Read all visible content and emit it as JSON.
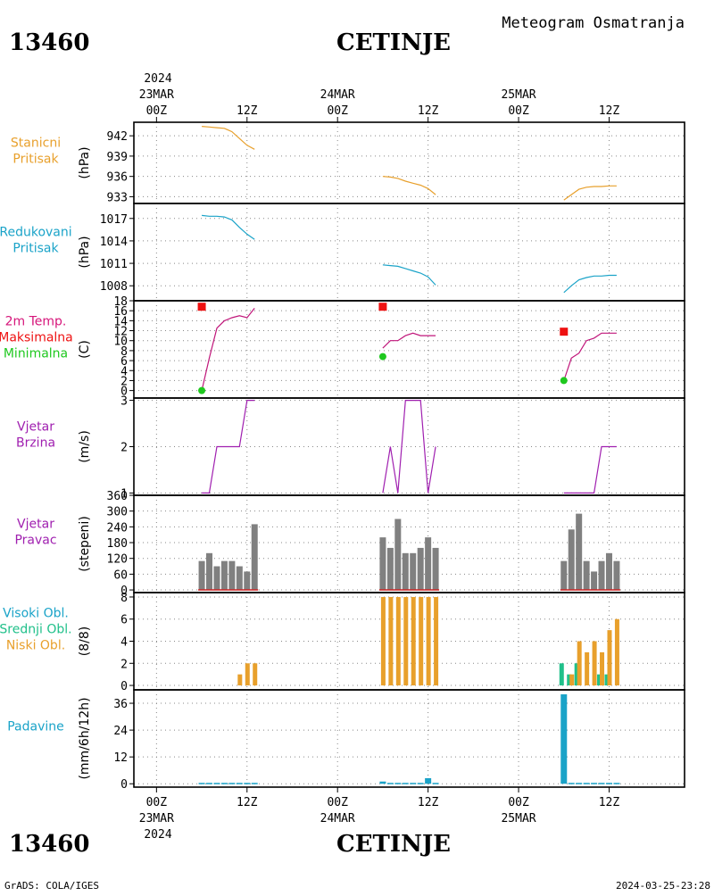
{
  "header": {
    "station_id": "13460",
    "station_name": "CETINJE",
    "product": "Meteogram Osmatranja"
  },
  "footer": {
    "station_id": "13460",
    "station_name": "CETINJE",
    "credit": "GrADS: COLA/IGES",
    "timestamp": "2024-03-25-23:28"
  },
  "time_axis": {
    "top_year": "2024",
    "bottom_year": "2024",
    "dates": [
      "23MAR",
      "24MAR",
      "25MAR"
    ],
    "ticks": [
      {
        "h": 0,
        "label": "00Z"
      },
      {
        "h": 12,
        "label": "12Z"
      },
      {
        "h": 24,
        "label": "00Z"
      },
      {
        "h": 36,
        "label": "12Z"
      },
      {
        "h": 48,
        "label": "00Z"
      },
      {
        "h": 60,
        "label": "12Z"
      }
    ],
    "date_hours": [
      0,
      24,
      48
    ],
    "x_range_hours": [
      -3,
      70
    ]
  },
  "chart_data": [
    {
      "type": "line",
      "label_lines": [
        "Stanicni",
        "Pritisak"
      ],
      "label_color": "#e8a02c",
      "ylabel": "(hPa)",
      "ylim": [
        932.0,
        944.0
      ],
      "yticks": [
        933,
        936,
        939,
        942
      ],
      "series": [
        {
          "color": "#e8a02c",
          "segments": [
            [
              [
                6,
                943.4
              ],
              [
                7,
                943.3
              ],
              [
                8,
                943.2
              ],
              [
                9,
                943.1
              ],
              [
                10,
                942.6
              ],
              [
                11,
                941.6
              ],
              [
                12,
                940.6
              ],
              [
                13,
                940.0
              ]
            ],
            [
              [
                30,
                936.0
              ],
              [
                31,
                935.9
              ],
              [
                32,
                935.7
              ],
              [
                33,
                935.3
              ],
              [
                34,
                935.0
              ],
              [
                35,
                934.7
              ],
              [
                36,
                934.2
              ],
              [
                37,
                933.3
              ]
            ],
            [
              [
                54,
                932.5
              ],
              [
                55,
                933.3
              ],
              [
                56,
                934.1
              ],
              [
                57,
                934.4
              ],
              [
                58,
                934.5
              ],
              [
                59,
                934.5
              ],
              [
                60,
                934.6
              ],
              [
                61,
                934.6
              ]
            ]
          ]
        }
      ]
    },
    {
      "type": "line",
      "label_lines": [
        "Redukovani",
        "Pritisak"
      ],
      "label_color": "#1aa3c8",
      "ylabel": "(hPa)",
      "ylim": [
        1006.0,
        1019.0
      ],
      "yticks": [
        1008,
        1011,
        1014,
        1017
      ],
      "series": [
        {
          "color": "#1aa3c8",
          "segments": [
            [
              [
                6,
                1017.4
              ],
              [
                7,
                1017.3
              ],
              [
                8,
                1017.3
              ],
              [
                9,
                1017.2
              ],
              [
                10,
                1016.8
              ],
              [
                11,
                1015.8
              ],
              [
                12,
                1014.9
              ],
              [
                13,
                1014.2
              ]
            ],
            [
              [
                30,
                1010.8
              ],
              [
                31,
                1010.7
              ],
              [
                32,
                1010.6
              ],
              [
                33,
                1010.3
              ],
              [
                34,
                1010.0
              ],
              [
                35,
                1009.7
              ],
              [
                36,
                1009.2
              ],
              [
                37,
                1008.1
              ]
            ],
            [
              [
                54,
                1007.1
              ],
              [
                55,
                1008.0
              ],
              [
                56,
                1008.8
              ],
              [
                57,
                1009.1
              ],
              [
                58,
                1009.3
              ],
              [
                59,
                1009.3
              ],
              [
                60,
                1009.4
              ],
              [
                61,
                1009.4
              ]
            ]
          ]
        }
      ]
    },
    {
      "type": "line",
      "label_lines": [
        "2m Temp.",
        "Maksimalna",
        "Minimalna"
      ],
      "label_colors": [
        "#d6157a",
        "#ee1111",
        "#1ec81e"
      ],
      "ylabel": "(C)",
      "ylim": [
        -1.5,
        18.0
      ],
      "yticks": [
        0,
        2,
        4,
        6,
        8,
        10,
        12,
        14,
        16,
        18
      ],
      "series": [
        {
          "color": "#c0157a",
          "segments": [
            [
              [
                6,
                0.0
              ],
              [
                7,
                6.5
              ],
              [
                8,
                12.5
              ],
              [
                9,
                14.0
              ],
              [
                10,
                14.6
              ],
              [
                11,
                15.0
              ],
              [
                12,
                14.6
              ],
              [
                13,
                16.5
              ]
            ],
            [
              [
                30,
                8.5
              ],
              [
                31,
                10.0
              ],
              [
                32,
                10.0
              ],
              [
                33,
                11.0
              ],
              [
                34,
                11.5
              ],
              [
                35,
                11.0
              ],
              [
                36,
                11.0
              ],
              [
                37,
                11.0
              ]
            ],
            [
              [
                54,
                2.0
              ],
              [
                55,
                6.5
              ],
              [
                56,
                7.5
              ],
              [
                57,
                10.0
              ],
              [
                58,
                10.5
              ],
              [
                59,
                11.5
              ],
              [
                60,
                11.5
              ],
              [
                61,
                11.5
              ]
            ]
          ]
        }
      ],
      "markers": [
        {
          "h": 6,
          "value": 16.8,
          "color": "#ee1111",
          "shape": "square"
        },
        {
          "h": 30,
          "value": 16.8,
          "color": "#ee1111",
          "shape": "square"
        },
        {
          "h": 54,
          "value": 11.8,
          "color": "#ee1111",
          "shape": "square"
        },
        {
          "h": 6,
          "value": 0.0,
          "color": "#1ec81e",
          "shape": "dot"
        },
        {
          "h": 30,
          "value": 6.8,
          "color": "#1ec81e",
          "shape": "dot"
        },
        {
          "h": 54,
          "value": 2.0,
          "color": "#1ec81e",
          "shape": "dot"
        }
      ]
    },
    {
      "type": "line",
      "label_lines": [
        "Vjetar",
        "Brzina"
      ],
      "label_color": "#a020b0",
      "ylabel": "(m/s)",
      "ylim": [
        0.95,
        3.05
      ],
      "yticks": [
        1,
        2,
        3
      ],
      "series": [
        {
          "color": "#a020b0",
          "segments": [
            [
              [
                6,
                1
              ],
              [
                7,
                1
              ],
              [
                8,
                2
              ],
              [
                9,
                2
              ],
              [
                10,
                2
              ],
              [
                11,
                2
              ],
              [
                12,
                3
              ],
              [
                13,
                3
              ]
            ],
            [
              [
                30,
                1
              ],
              [
                31,
                2
              ],
              [
                32,
                1
              ],
              [
                33,
                3
              ],
              [
                34,
                3
              ],
              [
                35,
                3
              ],
              [
                36,
                1
              ],
              [
                37,
                2
              ]
            ],
            [
              [
                54,
                1
              ],
              [
                55,
                1
              ],
              [
                56,
                1
              ],
              [
                57,
                1
              ],
              [
                58,
                1
              ],
              [
                59,
                2
              ],
              [
                60,
                2
              ],
              [
                61,
                2
              ]
            ]
          ]
        }
      ]
    },
    {
      "type": "bar",
      "label_lines": [
        "Vjetar",
        "Pravac"
      ],
      "label_color": "#a020b0",
      "ylabel": "(stepeni)",
      "ylim": [
        -10,
        360
      ],
      "yticks": [
        0,
        60,
        120,
        180,
        240,
        300,
        360
      ],
      "bar_color": "#808080",
      "baseline_color": "#cc2222",
      "series": [
        {
          "name": "",
          "x": [
            6,
            7,
            8,
            9,
            10,
            11,
            12,
            13,
            30,
            31,
            32,
            33,
            34,
            35,
            36,
            37,
            54,
            55,
            56,
            57,
            58,
            59,
            60,
            61
          ],
          "values": [
            110,
            140,
            90,
            110,
            110,
            90,
            70,
            250,
            200,
            160,
            270,
            140,
            140,
            160,
            200,
            160,
            110,
            230,
            290,
            110,
            70,
            110,
            140,
            110
          ]
        }
      ]
    },
    {
      "type": "bar",
      "label_lines": [
        "Visoki Obl.",
        "Srednji Obl.",
        "Niski Obl."
      ],
      "label_colors": [
        "#1aa3c8",
        "#20c08a",
        "#e8a02c"
      ],
      "ylabel": "(8/8)",
      "ylim": [
        -0.4,
        8.4
      ],
      "yticks": [
        0,
        2,
        4,
        6,
        8
      ],
      "series": [
        {
          "name": "",
          "color": "#20c08a",
          "x": [
            54,
            55,
            56,
            59,
            60
          ],
          "values": [
            2,
            1,
            2,
            1,
            1
          ]
        },
        {
          "name": "",
          "color": "#e8a02c",
          "x": [
            11,
            12,
            13,
            30,
            31,
            32,
            33,
            34,
            35,
            36,
            37,
            55,
            56,
            57,
            58,
            59,
            60,
            61
          ],
          "values": [
            1,
            2,
            2,
            8,
            8,
            8,
            8,
            8,
            8,
            8,
            8,
            1,
            4,
            3,
            4,
            3,
            5,
            6
          ]
        }
      ]
    },
    {
      "type": "bar",
      "label_lines": [
        "Padavine"
      ],
      "label_color": "#1aa3c8",
      "ylabel": "(mm/6h/12h)",
      "ylim": [
        -1.5,
        42.0
      ],
      "yticks": [
        0,
        12,
        24,
        36
      ],
      "series": [
        {
          "name": "",
          "color": "#1aa3c8",
          "x": [
            6,
            7,
            8,
            9,
            10,
            11,
            12,
            13,
            30,
            31,
            32,
            33,
            34,
            35,
            36,
            37,
            54,
            55,
            56,
            57,
            58,
            59,
            60,
            61
          ],
          "values": [
            0.4,
            0.4,
            0.4,
            0.4,
            0.4,
            0.4,
            0.4,
            0.4,
            1.0,
            0.4,
            0.4,
            0.4,
            0.4,
            0.4,
            2.5,
            0.4,
            40,
            0.4,
            0.4,
            0.4,
            0.4,
            0.4,
            0.4,
            0.4
          ]
        }
      ]
    }
  ]
}
